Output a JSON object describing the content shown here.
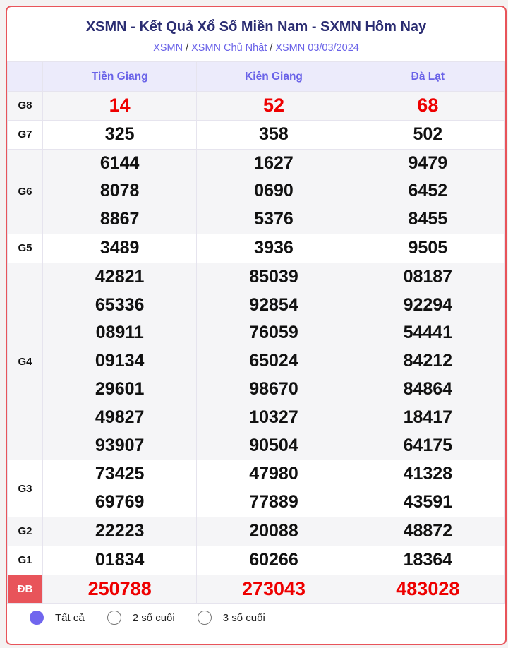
{
  "title": "XSMN - Kết Quả Xổ Số Miền Nam - SXMN Hôm Nay",
  "breadcrumb": [
    "XSMN",
    "XSMN Chủ Nhật",
    "XSMN 03/03/2024"
  ],
  "provinces": [
    "Tiền Giang",
    "Kiên Giang",
    "Đà Lạt"
  ],
  "prizes": [
    {
      "label": "G8",
      "values": [
        [
          "14"
        ],
        [
          "52"
        ],
        [
          "68"
        ]
      ],
      "highlight": true
    },
    {
      "label": "G7",
      "values": [
        [
          "325"
        ],
        [
          "358"
        ],
        [
          "502"
        ]
      ]
    },
    {
      "label": "G6",
      "values": [
        [
          "6144",
          "8078",
          "8867"
        ],
        [
          "1627",
          "0690",
          "5376"
        ],
        [
          "9479",
          "6452",
          "8455"
        ]
      ]
    },
    {
      "label": "G5",
      "values": [
        [
          "3489"
        ],
        [
          "3936"
        ],
        [
          "9505"
        ]
      ]
    },
    {
      "label": "G4",
      "values": [
        [
          "42821",
          "65336",
          "08911",
          "09134",
          "29601",
          "49827",
          "93907"
        ],
        [
          "85039",
          "92854",
          "76059",
          "65024",
          "98670",
          "10327",
          "90504"
        ],
        [
          "08187",
          "92294",
          "54441",
          "84212",
          "84864",
          "18417",
          "64175"
        ]
      ]
    },
    {
      "label": "G3",
      "values": [
        [
          "73425",
          "69769"
        ],
        [
          "47980",
          "77889"
        ],
        [
          "41328",
          "43591"
        ]
      ]
    },
    {
      "label": "G2",
      "values": [
        [
          "22223"
        ],
        [
          "20088"
        ],
        [
          "48872"
        ]
      ]
    },
    {
      "label": "G1",
      "values": [
        [
          "01834"
        ],
        [
          "60266"
        ],
        [
          "18364"
        ]
      ]
    },
    {
      "label": "ĐB",
      "values": [
        [
          "250788"
        ],
        [
          "273043"
        ],
        [
          "483028"
        ]
      ],
      "highlight": true,
      "special": true
    }
  ],
  "filter": {
    "options": [
      "Tất cả",
      "2 số cuối",
      "3 số cuối"
    ],
    "selected": 0
  },
  "colors": {
    "accent": "#6a63e8",
    "border": "#e8545a",
    "highlight": "#e00000",
    "title": "#2b2d72"
  }
}
